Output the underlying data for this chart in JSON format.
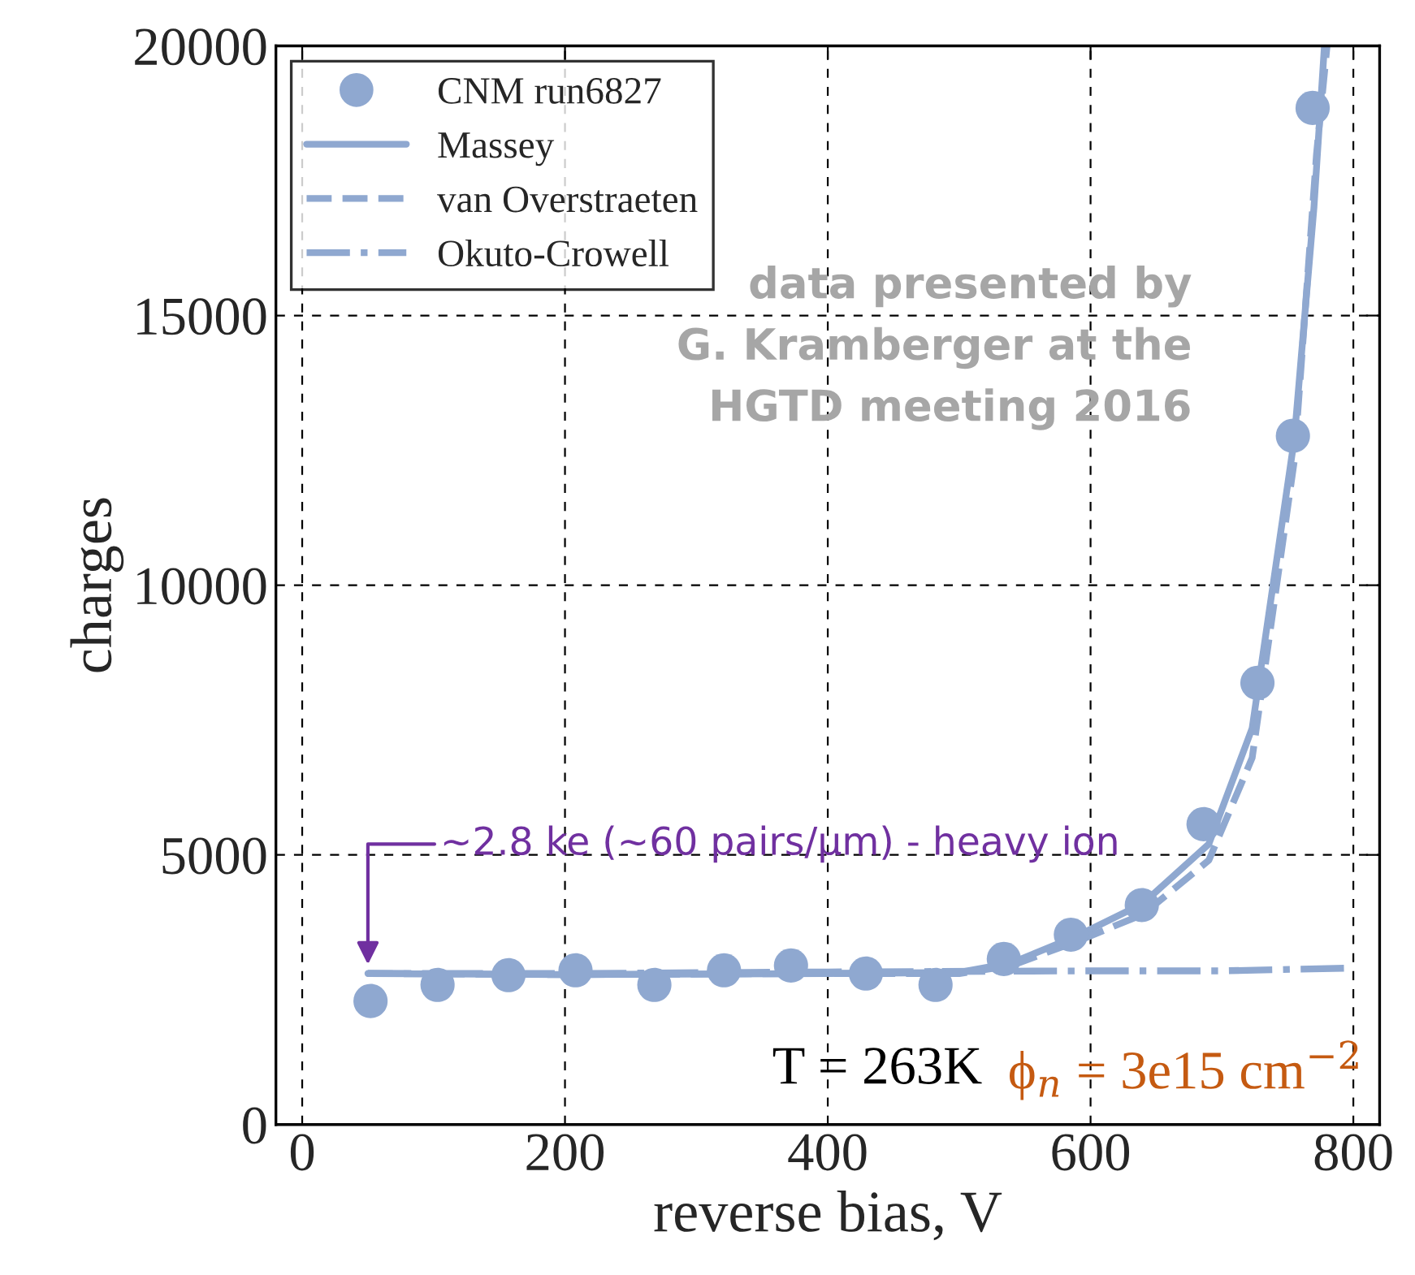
{
  "chart_data": {
    "type": "line",
    "xlabel": "reverse bias, V",
    "ylabel": "charges",
    "xlim": [
      -20,
      820
    ],
    "ylim": [
      0,
      20000
    ],
    "xticks": [
      0,
      200,
      400,
      600,
      800
    ],
    "yticks": [
      0,
      5000,
      10000,
      15000,
      20000
    ],
    "grid": true,
    "legend": "top left",
    "series": [
      {
        "name": "CNM run6827",
        "type": "scatter",
        "marker": "circle",
        "color": "#8fa8d0",
        "x": [
          52,
          103,
          157,
          208,
          268,
          321,
          372,
          429,
          482,
          534,
          585,
          639,
          686,
          727,
          754,
          769
        ],
        "values": [
          2290,
          2590,
          2770,
          2860,
          2590,
          2860,
          2950,
          2800,
          2590,
          3070,
          3520,
          4070,
          5570,
          8190,
          12770,
          18850
        ]
      },
      {
        "name": "Massey",
        "line_style": "solid",
        "color": "#8fa8d0",
        "x": [
          50,
          200,
          400,
          500,
          540,
          590,
          640,
          690,
          723,
          755,
          770,
          778
        ],
        "values": [
          2800,
          2780,
          2800,
          2820,
          3000,
          3500,
          4100,
          5200,
          7350,
          12700,
          17000,
          20000
        ]
      },
      {
        "name": "van Overstraeten",
        "line_style": "dashed",
        "color": "#8fa8d0",
        "x": [
          50,
          200,
          400,
          500,
          540,
          590,
          640,
          690,
          723,
          755,
          772,
          780
        ],
        "values": [
          2800,
          2780,
          2800,
          2800,
          2950,
          3400,
          3900,
          4900,
          6800,
          12300,
          18000,
          20000
        ]
      },
      {
        "name": "Okuto-Crowell",
        "line_style": "dashdot",
        "color": "#8fa8d0",
        "x": [
          50,
          200,
          400,
          600,
          700,
          795
        ],
        "values": [
          2800,
          2800,
          2830,
          2850,
          2850,
          2900
        ]
      }
    ],
    "annotations": [
      {
        "text": "~2.8 ke (~60 pairs/μm) - heavy ion",
        "x": 50,
        "y": 2800
      },
      "data presented by\nG. Kramberger at the\nHGTD meeting 2016",
      "T = 263K",
      "ϕ$_{n}$ = 3e15 cm$^{−2}$"
    ]
  }
}
